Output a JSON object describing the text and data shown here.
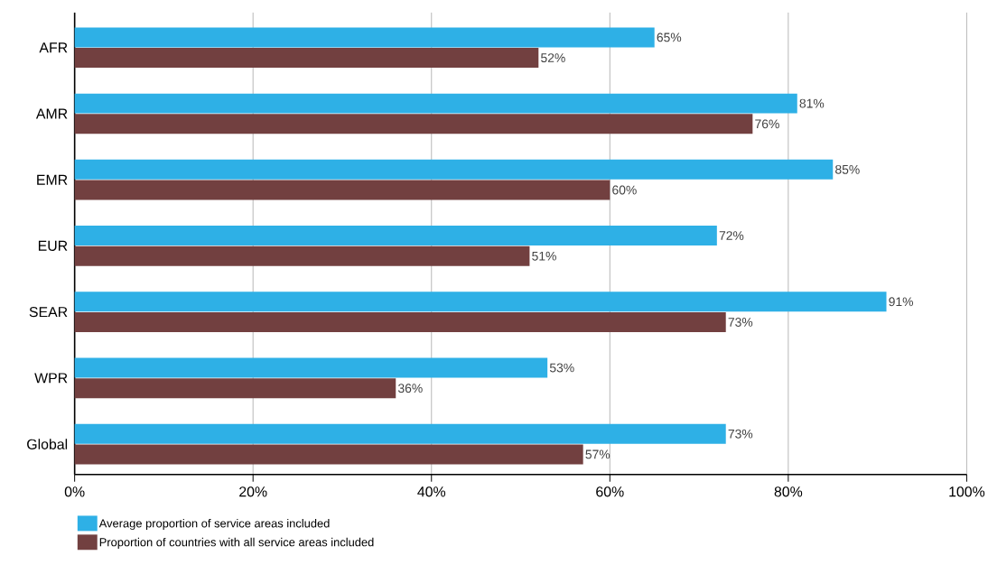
{
  "chart_data": {
    "type": "bar",
    "orientation": "horizontal",
    "categories": [
      "AFR",
      "AMR",
      "EMR",
      "EUR",
      "SEAR",
      "WPR",
      "Global"
    ],
    "series": [
      {
        "name": "Average proportion of service areas included",
        "color": "#2eb0e6",
        "values": [
          65,
          81,
          85,
          72,
          91,
          53,
          73
        ],
        "value_labels": [
          "65%",
          "81%",
          "85%",
          "72%",
          "91%",
          "53%",
          "73%"
        ]
      },
      {
        "name": "Proportion of countries with all service areas included",
        "color": "#724040",
        "values": [
          52,
          76,
          60,
          51,
          73,
          36,
          57
        ],
        "value_labels": [
          "52%",
          "76%",
          "60%",
          "51%",
          "73%",
          "36%",
          "57%"
        ]
      }
    ],
    "xlim": [
      0,
      100
    ],
    "xticks": [
      {
        "value": 0,
        "label": "0%"
      },
      {
        "value": 20,
        "label": "20%"
      },
      {
        "value": 40,
        "label": "40%"
      },
      {
        "value": 60,
        "label": "60%"
      },
      {
        "value": 80,
        "label": "80%"
      },
      {
        "value": 100,
        "label": "100%"
      }
    ],
    "grid": "x",
    "legend": "bottom left"
  }
}
